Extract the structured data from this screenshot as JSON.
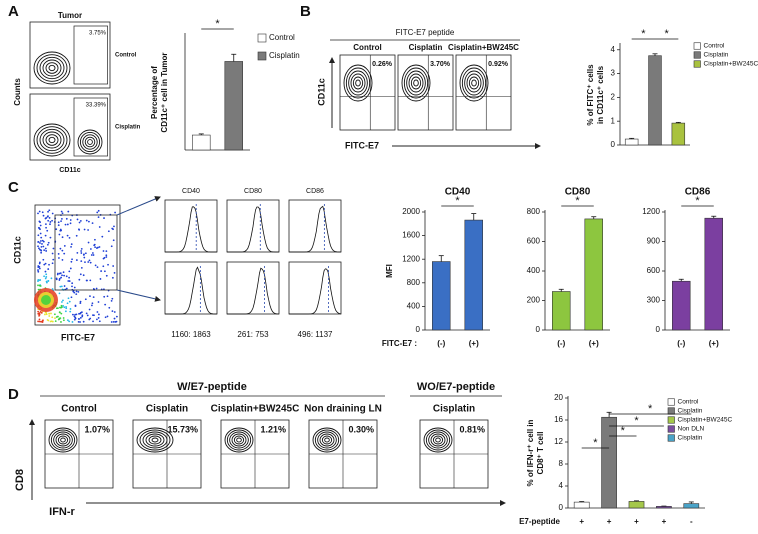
{
  "panel_labels": [
    "A",
    "B",
    "C",
    "D"
  ],
  "flow": {
    "a": {
      "title": "Tumor",
      "y_label": "Counts",
      "x_label": "CD11c",
      "plots": [
        {
          "name": "Control",
          "pct": "3.75%"
        },
        {
          "name": "Cisplatin",
          "pct": "33.39%"
        }
      ]
    },
    "b": {
      "title": "FITC-E7 peptide",
      "y_label": "CD11c",
      "x_label": "FITC-E7",
      "plots": [
        {
          "name": "Control",
          "pct": "0.26%"
        },
        {
          "name": "Cisplatin",
          "pct": "3.70%"
        },
        {
          "name": "Cisplatin+BW245C",
          "pct": "0.92%"
        }
      ]
    },
    "c": {
      "y_label": "CD11c",
      "x_label": "FITC-E7",
      "histograms": [
        {
          "name": "CD40",
          "mfi": "1160: 1863"
        },
        {
          "name": "CD80",
          "mfi": "261: 753"
        },
        {
          "name": "CD86",
          "mfi": "496: 1137"
        }
      ]
    },
    "d": {
      "group1": "W/E7-peptide",
      "group2": "WO/E7-peptide",
      "y_label": "CD8",
      "x_label": "IFN-r",
      "plots": [
        {
          "name": "Control",
          "pct": "1.07%"
        },
        {
          "name": "Cisplatin",
          "pct": "15.73%"
        },
        {
          "name": "Cisplatin+BW245C",
          "pct": "1.21%"
        },
        {
          "name": "Non draining LN",
          "pct": "0.30%"
        },
        {
          "name": "Cisplatin",
          "pct": "0.81%"
        }
      ]
    }
  },
  "chart_data": [
    {
      "type": "bar",
      "y_label": [
        "Percentage of",
        "CD11c⁺ cell in Tumor"
      ],
      "values": [
        5.2,
        30.8
      ],
      "errors": [
        0.4,
        2.5
      ],
      "colors": [
        "#ffffff",
        "#7a7a7a"
      ],
      "legend": [
        "Control",
        "Cisplatin"
      ],
      "ylim": [
        0,
        40
      ],
      "annotations": [
        "*"
      ]
    },
    {
      "type": "bar",
      "y_label": [
        "% of FITC⁺ cells",
        "in CD11c⁺ cells"
      ],
      "values": [
        0.25,
        3.75,
        0.92
      ],
      "errors": [
        0.03,
        0.08,
        0.03
      ],
      "colors": [
        "#ffffff",
        "#7a7a7a",
        "#a9c23f"
      ],
      "legend": [
        "Control",
        "Cisplatin",
        "Cisplatin+BW245C"
      ],
      "ylim": [
        0,
        4.2
      ],
      "yticks": [
        0,
        1,
        2,
        3,
        4
      ],
      "annotations": [
        "*",
        "*"
      ]
    },
    {
      "type": "bar",
      "title": "CD40",
      "y_label": [
        "MFI"
      ],
      "x_label": "FITC-E7 :",
      "categories": [
        "(-)",
        "(+)"
      ],
      "values": [
        1160,
        1863
      ],
      "errors": [
        100,
        110
      ],
      "color": "#3a6fc4",
      "ylim": [
        0,
        2000
      ],
      "yticks": [
        0,
        400,
        800,
        1200,
        1600,
        2000
      ],
      "annotations": [
        "*"
      ]
    },
    {
      "type": "bar",
      "title": "CD80",
      "categories": [
        "(-)",
        "(+)"
      ],
      "values": [
        261,
        753
      ],
      "errors": [
        15,
        15
      ],
      "color": "#8dc63f",
      "ylim": [
        0,
        800
      ],
      "yticks": [
        0,
        200,
        400,
        600,
        800
      ],
      "annotations": [
        "*"
      ]
    },
    {
      "type": "bar",
      "title": "CD86",
      "categories": [
        "(-)",
        "(+)"
      ],
      "values": [
        496,
        1137
      ],
      "errors": [
        20,
        20
      ],
      "color": "#7b3fa0",
      "ylim": [
        0,
        1200
      ],
      "yticks": [
        0,
        300,
        600,
        900,
        1200
      ],
      "annotations": [
        "*"
      ]
    },
    {
      "type": "bar",
      "y_label": [
        "% of IFN-r⁺ cell in",
        "CD8⁺ T cell"
      ],
      "x_label": "E7-peptide",
      "categories": [
        "+",
        "+",
        "+",
        "+",
        "-"
      ],
      "values": [
        1.07,
        16.5,
        1.2,
        0.3,
        0.8
      ],
      "errors": [
        0.1,
        0.9,
        0.1,
        0.05,
        0.3
      ],
      "colors": [
        "#ffffff",
        "#7a7a7a",
        "#a5c84a",
        "#7b4fa0",
        "#4aa3c8"
      ],
      "legend": [
        "Control",
        "Cisplatin",
        "Cisplatin+BW245C",
        "Non DLN",
        "Cisplatin"
      ],
      "ylim": [
        0,
        20
      ],
      "yticks": [
        0,
        4,
        8,
        12,
        16,
        20
      ],
      "annotations": [
        "*",
        "*",
        "*",
        "*"
      ]
    }
  ]
}
